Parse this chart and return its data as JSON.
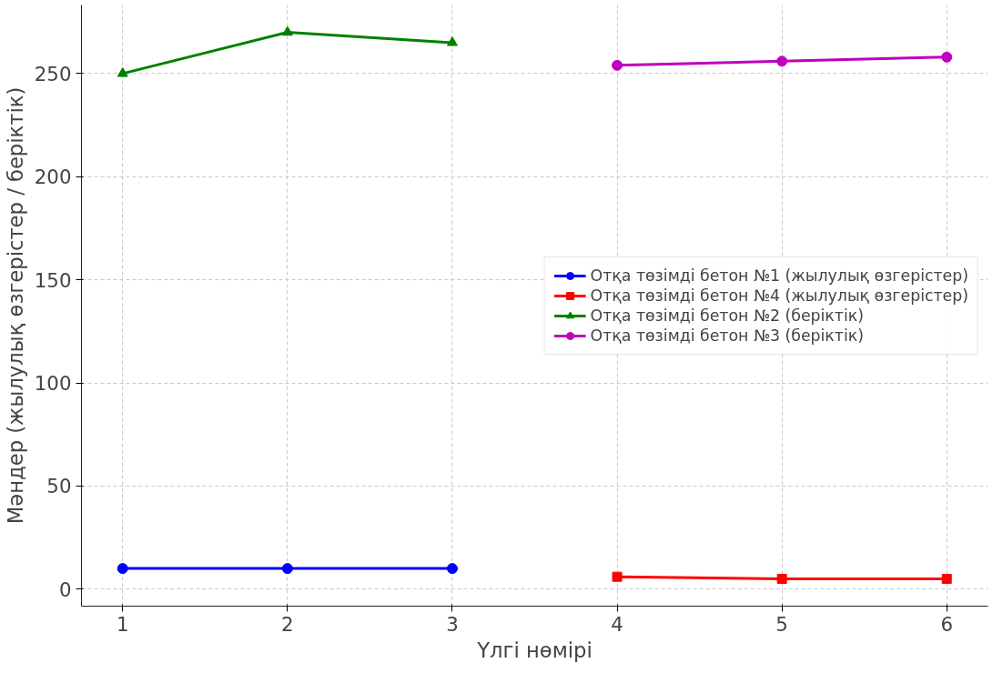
{
  "chart_data": {
    "type": "line",
    "xlabel": "Үлгі нөмірі",
    "ylabel": "Мәндер (жылулық өзгерістер / беріктік)",
    "xlim": [
      0.75,
      6.25
    ],
    "ylim": [
      -8.25,
      283.25
    ],
    "xticks": [
      1,
      2,
      3,
      4,
      5,
      6
    ],
    "yticks": [
      0,
      50,
      100,
      150,
      200,
      250
    ],
    "grid": true,
    "legend": "right",
    "line_style": "solid",
    "series": [
      {
        "name": "Отқа төзімді бетон №1 (жылулық өзгерістер)",
        "color": "#0000ff",
        "marker": "circle",
        "x": [
          1,
          2,
          3
        ],
        "values": [
          10,
          10,
          10
        ]
      },
      {
        "name": "Отқа төзімді бетон №4 (жылулық өзгерістер)",
        "color": "#ff0000",
        "marker": "square",
        "x": [
          4,
          5,
          6
        ],
        "values": [
          6,
          5,
          5
        ]
      },
      {
        "name": "Отқа төзімді бетон №2 (беріктік)",
        "color": "#008000",
        "marker": "triangle",
        "x": [
          1,
          2,
          3
        ],
        "values": [
          250,
          270,
          265
        ]
      },
      {
        "name": "Отқа төзімді бетон №3 (беріктік)",
        "color": "#bf00bf",
        "marker": "circle",
        "x": [
          4,
          5,
          6
        ],
        "values": [
          254,
          256,
          258
        ]
      }
    ]
  }
}
